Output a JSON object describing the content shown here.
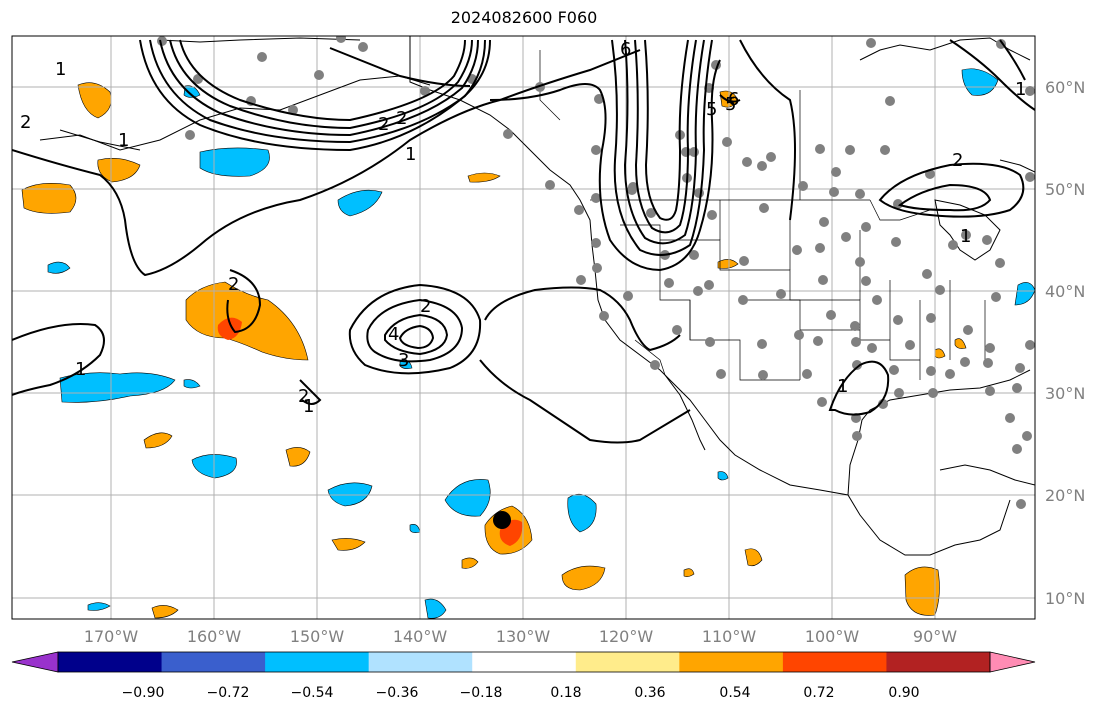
{
  "title": "2024082600 F060",
  "lat_labels": [
    "60°N",
    "50°N",
    "40°N",
    "30°N",
    "20°N",
    "10°N"
  ],
  "lon_labels": [
    "170°W",
    "160°W",
    "150°W",
    "140°W",
    "130°W",
    "120°W",
    "110°W",
    "100°W",
    "90°W"
  ],
  "contour_labels": [
    "1",
    "2",
    "1",
    "2",
    "2",
    "6",
    "6",
    "5",
    "1",
    "1",
    "2",
    "4",
    "3",
    "2",
    "1",
    "2",
    "1",
    "2",
    "5",
    "1",
    "1"
  ],
  "colorbar": {
    "tick_labels": [
      "−0.90",
      "−0.72",
      "−0.54",
      "−0.36",
      "−0.18",
      "0.18",
      "0.36",
      "0.54",
      "0.72",
      "0.90"
    ],
    "colors": [
      "#9932cc",
      "#00008b",
      "#3a5fcd",
      "#00bfff",
      "#b0e2ff",
      "#ffffff",
      "#ffec8b",
      "#ffa500",
      "#ff4500",
      "#b22222",
      "#ff8cb4"
    ]
  },
  "colors": {
    "grid": "#b0b0b0",
    "station": "#808080",
    "storm_center": "#000000",
    "coast": "#000000"
  }
}
